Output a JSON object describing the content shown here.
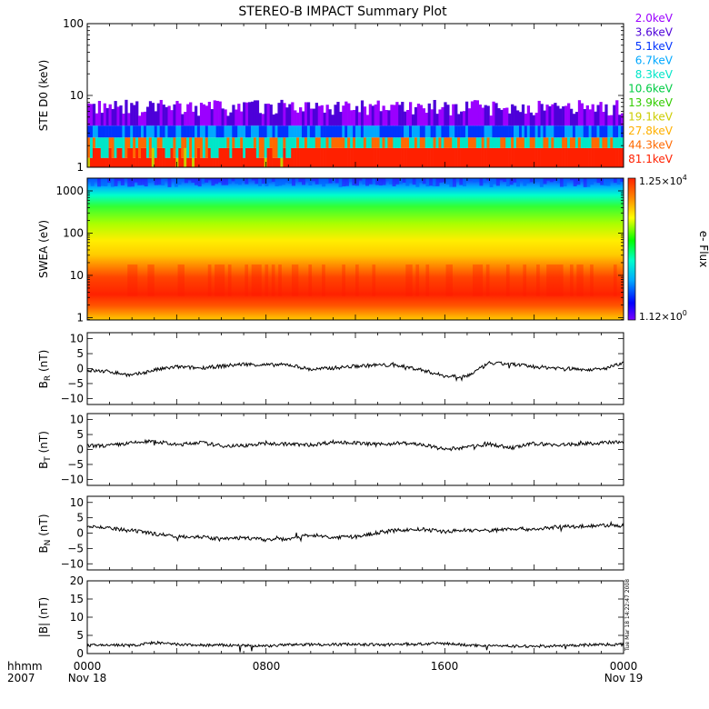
{
  "title": "STEREO-B IMPACT Summary Plot",
  "colors": {
    "energy": [
      "#9b00ff",
      "#4d00d9",
      "#0033ff",
      "#00a8ff",
      "#00e6c8",
      "#00cc44",
      "#33cc00",
      "#cccc00",
      "#ffb000",
      "#ff6a00",
      "#ff2000"
    ],
    "colorbar": [
      "#7a00ff",
      "#0000ff",
      "#00aaff",
      "#00ffcc",
      "#00ff00",
      "#ffff00",
      "#ff8800",
      "#ff2200"
    ]
  },
  "time_axis": {
    "start_hhmm": "0000",
    "start_date": "Nov 18",
    "mid1": "0800",
    "mid2": "1600",
    "end_hhmm": "0000",
    "end_date": "Nov 19",
    "row_label_1": "hhmm",
    "row_label_2": "2007"
  },
  "stamp": "Tue Mar 18 14:22:47 2008",
  "chart_data": [
    {
      "type": "heatmap",
      "ylabel": "STE D0 (keV)",
      "yscale": "log",
      "ylim": [
        1,
        100
      ],
      "yticks": [
        "1",
        "10",
        "100"
      ],
      "legend": [
        "2.0keV",
        "3.6keV",
        "5.1keV",
        "6.7keV",
        "8.3keV",
        "10.6keV",
        "13.9keV",
        "19.1keV",
        "27.8keV",
        "44.3keV",
        "81.1keV"
      ],
      "legend_position": "right"
    },
    {
      "type": "heatmap",
      "ylabel": "SWEA (eV)",
      "yscale": "log",
      "ylim": [
        1,
        2000
      ],
      "yticks": [
        "1",
        "10",
        "100",
        "1000"
      ],
      "colorbar_label": "e- Flux",
      "colorbar_range": [
        1.12,
        12500
      ],
      "colorbar_max_label": "1.25×10",
      "colorbar_max_exp": "4",
      "colorbar_min_label": "1.12×10",
      "colorbar_min_exp": "0"
    },
    {
      "type": "line",
      "ylabel": "BR (nT)",
      "ylim": [
        -12,
        12
      ],
      "yticks": [
        "−10",
        "−5",
        "0",
        "5",
        "10"
      ],
      "x_hours": [
        0,
        1,
        2,
        3,
        4,
        5,
        6,
        7,
        8,
        9,
        10,
        11,
        12,
        13,
        14,
        15,
        16,
        17,
        18,
        19,
        20,
        21,
        22,
        23,
        24
      ],
      "y": [
        -0.6,
        -1,
        -2.3,
        -0.5,
        0.6,
        0.2,
        0.8,
        1.5,
        1.2,
        1.3,
        -0.3,
        0.2,
        0.8,
        1.2,
        1,
        -0.5,
        -2.5,
        -2.5,
        1.8,
        1.5,
        0.6,
        0.2,
        -0.2,
        -0.3,
        1.8
      ]
    },
    {
      "type": "line",
      "ylabel": "BT (nT)",
      "ylim": [
        -12,
        12
      ],
      "yticks": [
        "−10",
        "−5",
        "0",
        "5",
        "10"
      ],
      "x_hours": [
        0,
        1,
        2,
        3,
        4,
        5,
        6,
        7,
        8,
        9,
        10,
        11,
        12,
        13,
        14,
        15,
        16,
        17,
        18,
        19,
        20,
        21,
        22,
        23,
        24
      ],
      "y": [
        1.2,
        1.3,
        2.2,
        2.8,
        1.5,
        2.4,
        1.2,
        1.3,
        2,
        1.8,
        1.5,
        2.5,
        2.2,
        1.6,
        2.2,
        1.6,
        0,
        0.8,
        1.8,
        0.5,
        2,
        1.5,
        1.8,
        2.2,
        2.5
      ]
    },
    {
      "type": "line",
      "ylabel": "BN (nT)",
      "ylim": [
        -12,
        12
      ],
      "yticks": [
        "−10",
        "−5",
        "0",
        "5",
        "10"
      ],
      "x_hours": [
        0,
        1,
        2,
        3,
        4,
        5,
        6,
        7,
        8,
        9,
        10,
        11,
        12,
        13,
        14,
        15,
        16,
        17,
        18,
        19,
        20,
        21,
        22,
        23,
        24
      ],
      "y": [
        2.5,
        1.5,
        0.8,
        -0.2,
        -1,
        -1.2,
        -2,
        -1.5,
        -2.2,
        -1.8,
        -0.5,
        -1.5,
        -1.2,
        0.2,
        1,
        1.2,
        0.5,
        1,
        0.8,
        1.5,
        1.2,
        2,
        2.2,
        2.5,
        2.4
      ]
    },
    {
      "type": "line",
      "ylabel": "|B| (nT)",
      "ylim": [
        0,
        20
      ],
      "yticks": [
        "0",
        "5",
        "10",
        "15",
        "20"
      ],
      "x_hours": [
        0,
        1,
        2,
        3,
        4,
        5,
        6,
        7,
        8,
        9,
        10,
        11,
        12,
        13,
        14,
        15,
        16,
        17,
        18,
        19,
        20,
        21,
        22,
        23,
        24
      ],
      "y": [
        2.2,
        2.4,
        2.2,
        3,
        2.5,
        2.3,
        2.3,
        2.2,
        2.1,
        2.4,
        2.5,
        2.5,
        2.6,
        2.4,
        2.5,
        2.6,
        2.8,
        2.3,
        2.2,
        2,
        2,
        2.1,
        2.3,
        2.5,
        2.5
      ]
    }
  ]
}
